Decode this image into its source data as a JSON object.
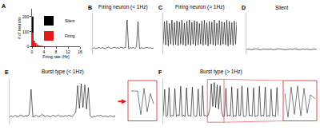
{
  "chart_data": [
    {
      "panel": "A",
      "type": "histogram",
      "bins": [
        0,
        0.5,
        1,
        1.5,
        2,
        2.5,
        3,
        3.5,
        4,
        4.5,
        5,
        5.5,
        6,
        6.5,
        7,
        7.5,
        8,
        8.5,
        9,
        9.5,
        10,
        10.5,
        11,
        11.5,
        12,
        12.5,
        13,
        13.5,
        14,
        14.5,
        15,
        15.5,
        16
      ],
      "series": [
        {
          "name": "Silent",
          "color": "#000000",
          "values": [
            200,
            0,
            0,
            0,
            0,
            0,
            0,
            0,
            0,
            0,
            0,
            0,
            0,
            0,
            0,
            0,
            0,
            0,
            0,
            0,
            0,
            0,
            0,
            0,
            0,
            0,
            0,
            0,
            0,
            0,
            0,
            0
          ]
        },
        {
          "name": "Firing",
          "color": "#e31a1c",
          "values": [
            95,
            40,
            25,
            15,
            10,
            8,
            6,
            5,
            4,
            3,
            3,
            2,
            2,
            1,
            1,
            1,
            1,
            0,
            1,
            0,
            0,
            1,
            0,
            0,
            0,
            0,
            0,
            0,
            0,
            0,
            1,
            0
          ]
        }
      ],
      "xlabel": "Firing rate (Hz)",
      "ylabel": "# of neurons",
      "xlim": [
        0,
        16
      ],
      "xticks": [
        0,
        4,
        8,
        12,
        16
      ],
      "ylim": [
        0,
        250
      ],
      "yticks": [
        0,
        100,
        200
      ],
      "legend": "upper right"
    },
    {
      "panel": "B",
      "type": "line",
      "title": "Firing neuron (< 1Hz)",
      "color": "#000000",
      "tick_labels": false,
      "ylim": [
        -80,
        40
      ],
      "values": [
        -62,
        -60,
        -63,
        -61,
        -59,
        -62,
        -60,
        -61,
        -63,
        -60,
        -58,
        -61,
        -62,
        -60,
        -59,
        -61,
        -60,
        -62,
        -58,
        -60,
        -61,
        -59,
        20,
        -64,
        -60,
        -61,
        -59,
        -62,
        -58,
        15,
        -63,
        -60,
        -61,
        -62,
        -59,
        -60,
        -61,
        -60,
        -62,
        -61
      ]
    },
    {
      "panel": "C",
      "type": "line",
      "title": "Firing neuron (> 1Hz)",
      "color": "#000000",
      "tick_labels": false,
      "ylim": [
        -80,
        40
      ],
      "values": [
        -50,
        15,
        -52,
        18,
        -55,
        10,
        -50,
        20,
        -53,
        12,
        -51,
        17,
        -54,
        14,
        -50,
        19,
        -52,
        11,
        -55,
        16,
        -51,
        20,
        -53,
        13,
        -50,
        18,
        -54,
        15,
        -52,
        10,
        -50,
        17,
        -53,
        19,
        -51,
        12,
        -55,
        16,
        -50,
        14,
        -52,
        20,
        -54,
        11,
        -51,
        18,
        -53,
        15,
        -50,
        13,
        -52,
        19,
        -55,
        16,
        -51,
        12,
        -53,
        17,
        -50,
        14
      ]
    },
    {
      "panel": "D",
      "type": "line",
      "title": "Silent",
      "color": "#000000",
      "tick_labels": false,
      "ylim": [
        -80,
        40
      ],
      "values": [
        -65,
        -64,
        -66,
        -65,
        -63,
        -65,
        -66,
        -64,
        -65,
        -65,
        -64,
        -66,
        -65,
        -63,
        -64,
        -65,
        -66,
        -65,
        -64,
        -65,
        -63,
        -65,
        -66,
        -64,
        -65,
        -64,
        -66,
        -65,
        -64,
        -65
      ]
    },
    {
      "panel": "E",
      "type": "line",
      "title": "Burst type (< 1Hz)",
      "color": "#000000",
      "tick_labels": false,
      "ylim": [
        -80,
        40
      ],
      "values": [
        -62,
        -60,
        -63,
        -58,
        -61,
        -62,
        -57,
        -60,
        -62,
        -59,
        -61,
        -55,
        10,
        -63,
        -60,
        -58,
        -62,
        -61,
        -56,
        -60,
        -62,
        -59,
        -61,
        -63,
        -58,
        -60,
        -62,
        -57,
        -61,
        -60,
        -62,
        -59,
        -61,
        -58,
        -60,
        -62,
        -56,
        -50,
        20,
        -40,
        25,
        -38,
        22,
        -42,
        15,
        -60,
        -64,
        -61,
        -62,
        -59,
        -60,
        -58,
        -62,
        -61,
        -60,
        -63,
        -59,
        -61,
        -62,
        -60
      ]
    },
    {
      "panel": "F",
      "type": "line",
      "title": "Burst type (> 1Hz)",
      "color": "#000000",
      "tick_labels": false,
      "ylim": [
        -80,
        40
      ],
      "values": [
        -60,
        10,
        -62,
        -58,
        15,
        -61,
        -59,
        -60,
        12,
        -62,
        -57,
        -60,
        18,
        -61,
        -58,
        -62,
        14,
        -60,
        -59,
        -61,
        16,
        -58,
        -62,
        -60,
        11,
        -59,
        -61,
        20,
        -60,
        -58,
        -62,
        -57,
        -40,
        25,
        -35,
        28,
        -38,
        22,
        -42,
        20,
        -45,
        -62,
        -60,
        13,
        -61,
        -58,
        -60,
        17,
        -62,
        -59,
        -61,
        12,
        -60,
        -58,
        19,
        -61,
        -62,
        -59,
        15,
        -60,
        -58,
        -61,
        14,
        -62,
        -60,
        -59,
        18,
        -61,
        -58,
        -60,
        16,
        -62,
        -59,
        -61,
        11,
        -60,
        -58,
        -62,
        15,
        -60
      ]
    }
  ]
}
